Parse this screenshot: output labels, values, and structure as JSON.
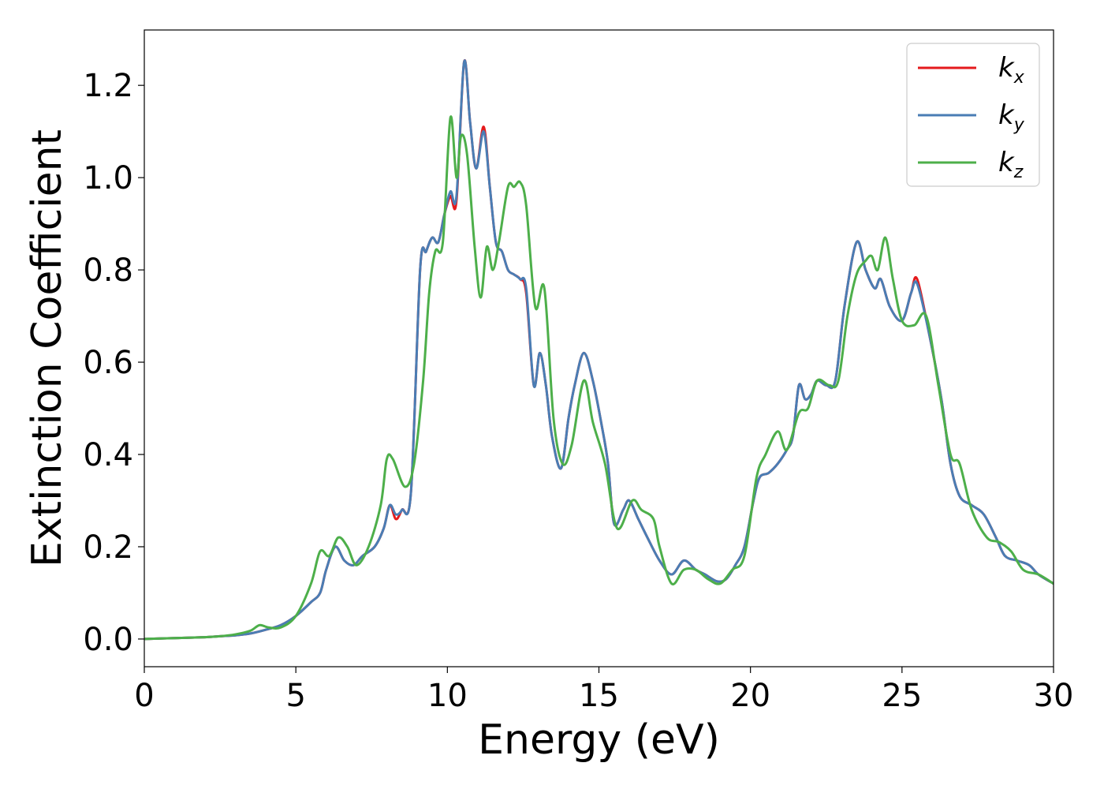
{
  "chart_data": {
    "type": "line",
    "title": "",
    "xlabel": "Energy (eV)",
    "ylabel": "Extinction Coefficient",
    "xlim": [
      0,
      30
    ],
    "ylim": [
      -0.06,
      1.32
    ],
    "xticks": [
      0,
      5,
      10,
      15,
      20,
      25,
      30
    ],
    "xtick_labels": [
      "0",
      "5",
      "10",
      "15",
      "20",
      "25",
      "30"
    ],
    "yticks": [
      0.0,
      0.2,
      0.4,
      0.6,
      0.8,
      1.0,
      1.2
    ],
    "ytick_labels": [
      "0.0",
      "0.2",
      "0.4",
      "0.6",
      "0.8",
      "1.0",
      "1.2"
    ],
    "grid": false,
    "legend_position": "top-right",
    "series": [
      {
        "name": "k_x",
        "label_base": "k",
        "label_sub": "x",
        "color": "#e41a1c",
        "x": [
          0,
          1,
          2,
          2.5,
          3,
          3.5,
          4,
          4.5,
          5,
          5.5,
          5.8,
          6,
          6.3,
          6.6,
          6.9,
          7.2,
          7.6,
          7.9,
          8.1,
          8.3,
          8.5,
          8.8,
          9.1,
          9.3,
          9.5,
          9.7,
          9.9,
          10.1,
          10.3,
          10.55,
          10.75,
          10.95,
          11.2,
          11.4,
          11.6,
          11.8,
          12,
          12.2,
          12.4,
          12.6,
          12.85,
          13.05,
          13.25,
          13.45,
          13.75,
          14.0,
          14.2,
          14.5,
          14.8,
          15.1,
          15.3,
          15.5,
          15.8,
          16.0,
          16.3,
          16.6,
          17.0,
          17.4,
          17.8,
          18.2,
          18.5,
          18.9,
          19.2,
          19.5,
          19.8,
          20.1,
          20.3,
          20.6,
          20.9,
          21.2,
          21.4,
          21.6,
          21.8,
          22.0,
          22.2,
          22.5,
          22.8,
          23.1,
          23.5,
          23.8,
          24.1,
          24.3,
          24.6,
          25.0,
          25.3,
          25.5,
          25.9,
          26.3,
          26.6,
          26.9,
          27.3,
          27.7,
          28.1,
          28.4,
          28.8,
          29.2,
          29.5,
          30
        ],
        "y": [
          0.0,
          0.002,
          0.004,
          0.006,
          0.008,
          0.012,
          0.02,
          0.03,
          0.05,
          0.08,
          0.1,
          0.15,
          0.2,
          0.17,
          0.16,
          0.18,
          0.2,
          0.24,
          0.29,
          0.26,
          0.28,
          0.32,
          0.8,
          0.84,
          0.87,
          0.86,
          0.92,
          0.96,
          0.95,
          1.25,
          1.12,
          1.02,
          1.11,
          0.98,
          0.86,
          0.84,
          0.8,
          0.79,
          0.78,
          0.75,
          0.55,
          0.62,
          0.55,
          0.44,
          0.37,
          0.48,
          0.55,
          0.62,
          0.56,
          0.46,
          0.38,
          0.25,
          0.28,
          0.3,
          0.26,
          0.22,
          0.17,
          0.14,
          0.17,
          0.15,
          0.14,
          0.125,
          0.13,
          0.16,
          0.2,
          0.3,
          0.35,
          0.36,
          0.38,
          0.41,
          0.44,
          0.55,
          0.52,
          0.53,
          0.56,
          0.55,
          0.56,
          0.72,
          0.86,
          0.8,
          0.76,
          0.78,
          0.72,
          0.69,
          0.75,
          0.78,
          0.66,
          0.52,
          0.38,
          0.31,
          0.29,
          0.27,
          0.22,
          0.18,
          0.17,
          0.16,
          0.14,
          0.12
        ]
      },
      {
        "name": "k_y",
        "label_base": "k",
        "label_sub": "y",
        "color": "#4a7db4",
        "x": [
          0,
          1,
          2,
          2.5,
          3,
          3.5,
          4,
          4.5,
          5,
          5.5,
          5.8,
          6,
          6.3,
          6.6,
          6.9,
          7.2,
          7.6,
          7.9,
          8.1,
          8.3,
          8.5,
          8.8,
          9.1,
          9.3,
          9.5,
          9.7,
          9.9,
          10.1,
          10.3,
          10.55,
          10.75,
          10.95,
          11.2,
          11.4,
          11.6,
          11.8,
          12,
          12.2,
          12.4,
          12.6,
          12.85,
          13.05,
          13.25,
          13.45,
          13.75,
          14.0,
          14.2,
          14.5,
          14.8,
          15.1,
          15.3,
          15.5,
          15.8,
          16.0,
          16.3,
          16.6,
          17.0,
          17.4,
          17.8,
          18.2,
          18.5,
          18.9,
          19.2,
          19.5,
          19.8,
          20.1,
          20.3,
          20.6,
          20.9,
          21.2,
          21.4,
          21.6,
          21.8,
          22.0,
          22.2,
          22.5,
          22.8,
          23.1,
          23.5,
          23.8,
          24.1,
          24.3,
          24.6,
          25.0,
          25.3,
          25.5,
          25.9,
          26.3,
          26.6,
          26.9,
          27.3,
          27.7,
          28.1,
          28.4,
          28.8,
          29.2,
          29.5,
          30
        ],
        "y": [
          0.0,
          0.002,
          0.004,
          0.006,
          0.008,
          0.012,
          0.02,
          0.03,
          0.05,
          0.08,
          0.1,
          0.15,
          0.2,
          0.17,
          0.16,
          0.18,
          0.2,
          0.24,
          0.29,
          0.27,
          0.28,
          0.32,
          0.8,
          0.84,
          0.87,
          0.86,
          0.92,
          0.97,
          0.96,
          1.25,
          1.12,
          1.02,
          1.1,
          0.98,
          0.86,
          0.84,
          0.8,
          0.79,
          0.78,
          0.76,
          0.55,
          0.62,
          0.55,
          0.44,
          0.37,
          0.48,
          0.55,
          0.62,
          0.56,
          0.46,
          0.38,
          0.25,
          0.28,
          0.3,
          0.26,
          0.22,
          0.17,
          0.14,
          0.17,
          0.15,
          0.14,
          0.125,
          0.13,
          0.16,
          0.2,
          0.3,
          0.35,
          0.36,
          0.38,
          0.41,
          0.44,
          0.55,
          0.52,
          0.53,
          0.56,
          0.55,
          0.56,
          0.72,
          0.86,
          0.8,
          0.76,
          0.78,
          0.72,
          0.69,
          0.75,
          0.77,
          0.66,
          0.52,
          0.38,
          0.31,
          0.29,
          0.27,
          0.22,
          0.18,
          0.17,
          0.16,
          0.14,
          0.12
        ]
      },
      {
        "name": "k_z",
        "label_base": "k",
        "label_sub": "z",
        "color": "#4daf4a",
        "x": [
          0,
          1,
          2,
          2.5,
          3,
          3.5,
          3.8,
          4.1,
          4.5,
          5,
          5.5,
          5.8,
          6.1,
          6.4,
          6.7,
          7.0,
          7.4,
          7.8,
          8.0,
          8.2,
          8.6,
          8.9,
          9.2,
          9.4,
          9.6,
          9.85,
          10.1,
          10.3,
          10.45,
          10.65,
          10.9,
          11.1,
          11.3,
          11.5,
          11.7,
          12.0,
          12.2,
          12.4,
          12.6,
          12.9,
          13.2,
          13.5,
          13.8,
          14.1,
          14.5,
          14.8,
          15.2,
          15.6,
          16.1,
          16.4,
          16.8,
          17.0,
          17.4,
          17.8,
          18.2,
          18.6,
          19.0,
          19.4,
          19.8,
          20.2,
          20.5,
          20.9,
          21.2,
          21.6,
          21.9,
          22.2,
          22.6,
          22.9,
          23.2,
          23.5,
          23.8,
          24.0,
          24.2,
          24.45,
          24.7,
          25.0,
          25.4,
          25.8,
          26.2,
          26.6,
          26.9,
          27.3,
          27.8,
          28.2,
          28.6,
          29.0,
          29.5,
          30
        ],
        "y": [
          0.0,
          0.002,
          0.004,
          0.006,
          0.01,
          0.018,
          0.03,
          0.025,
          0.025,
          0.05,
          0.12,
          0.19,
          0.18,
          0.22,
          0.2,
          0.16,
          0.2,
          0.29,
          0.39,
          0.39,
          0.33,
          0.38,
          0.56,
          0.75,
          0.84,
          0.86,
          1.13,
          1.0,
          1.09,
          1.05,
          0.85,
          0.74,
          0.85,
          0.8,
          0.86,
          0.98,
          0.98,
          0.99,
          0.94,
          0.72,
          0.76,
          0.48,
          0.38,
          0.42,
          0.56,
          0.47,
          0.38,
          0.24,
          0.3,
          0.28,
          0.26,
          0.2,
          0.12,
          0.15,
          0.15,
          0.13,
          0.12,
          0.15,
          0.18,
          0.35,
          0.4,
          0.45,
          0.41,
          0.49,
          0.5,
          0.56,
          0.55,
          0.56,
          0.7,
          0.79,
          0.82,
          0.83,
          0.8,
          0.87,
          0.78,
          0.69,
          0.68,
          0.7,
          0.55,
          0.4,
          0.38,
          0.28,
          0.22,
          0.21,
          0.19,
          0.15,
          0.14,
          0.12
        ]
      }
    ]
  }
}
